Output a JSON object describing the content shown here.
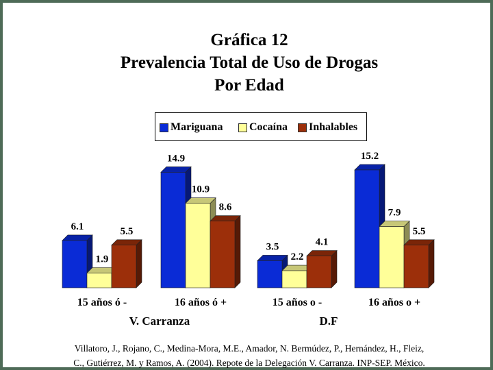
{
  "title_lines": [
    "Gráfica 12",
    "Prevalencia Total de Uso de Drogas",
    "Por Edad"
  ],
  "colors": {
    "Mariguana": "#0a2bd6",
    "Cocaína": "#ffff99",
    "Inhalables": "#9c2f0a",
    "frame": "#4e6b57"
  },
  "chart_data": {
    "type": "bar",
    "title": "Gráfica 12 Prevalencia Total de Uso de Drogas Por Edad",
    "categories": [
      "15 años ó -",
      "16 años ó +",
      "15 años o -",
      "16 años o +"
    ],
    "groups": [
      {
        "label": "V. Carranza",
        "categories": [
          "15 años ó -",
          "16 años ó +"
        ]
      },
      {
        "label": "D.F",
        "categories": [
          "15 años o -",
          "16 años o +"
        ]
      }
    ],
    "series": [
      {
        "name": "Mariguana",
        "values": [
          6.1,
          14.9,
          3.5,
          15.2
        ]
      },
      {
        "name": "Cocaína",
        "values": [
          1.9,
          10.9,
          2.2,
          7.9
        ]
      },
      {
        "name": "Inhalables",
        "values": [
          5.5,
          8.6,
          4.1,
          5.5
        ]
      }
    ],
    "value_labels": [
      [
        "6.1",
        "14.9",
        "3.5",
        "15.2"
      ],
      [
        "1.9",
        "10.9",
        "2.2",
        "7.9"
      ],
      [
        "5.5",
        "8.6",
        "4.1",
        "5.5"
      ]
    ],
    "ylim": [
      0,
      15.2
    ],
    "legend_position": "top-center",
    "grid": false,
    "three_d": true
  },
  "citation_lines": [
    "Villatoro, J., Rojano, C., Medina-Mora, M.E., Amador, N. Bermúdez, P., Hernández, H., Fleiz,",
    "C., Gutiérrez, M. y Ramos, A. (2004). Repote de la Delegación V. Carranza. INP-SEP. México."
  ]
}
